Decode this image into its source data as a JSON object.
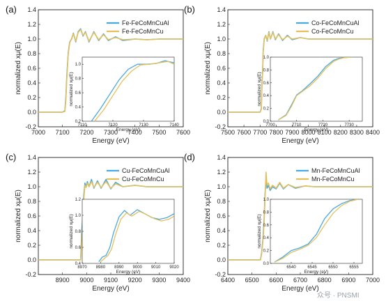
{
  "colors": {
    "series_a": "#4aa8e0",
    "series_b": "#e3c05a",
    "axis": "#222222"
  },
  "watermark": "众号 · PNSMI",
  "chart_data": [
    {
      "type": "line",
      "panel_label": "(a)",
      "xlabel": "Energy (eV)",
      "ylabel": "normalized xμ(E)",
      "xlim": [
        7000,
        7600
      ],
      "ylim": [
        -0.2,
        1.4
      ],
      "xticks": [
        7000,
        7100,
        7200,
        7300,
        7400,
        7500,
        7600
      ],
      "yticks": [
        -0.2,
        0.0,
        0.2,
        0.4,
        0.6,
        0.8,
        1.0,
        1.2,
        1.4
      ],
      "legend": [
        "Fe-FeCoMnCuAl",
        "Fe-FeCoMnCu"
      ],
      "series": [
        {
          "name": "Fe-FeCoMnCuAl",
          "x": [
            7000,
            7100,
            7110,
            7114,
            7118,
            7124,
            7130,
            7138,
            7145,
            7155,
            7165,
            7175,
            7185,
            7195,
            7210,
            7230,
            7250,
            7270,
            7290,
            7320,
            7350,
            7400,
            7450,
            7500,
            7600
          ],
          "y": [
            0,
            0,
            0.02,
            0.2,
            0.5,
            0.82,
            0.96,
            1.0,
            1.08,
            0.96,
            1.1,
            1.14,
            1.04,
            1.1,
            0.96,
            1.1,
            0.98,
            1.07,
            0.98,
            1.03,
            0.98,
            1.0,
            0.99,
            1.0,
            1.0
          ]
        },
        {
          "name": "Fe-FeCoMnCu",
          "x": [
            7000,
            7100,
            7110,
            7114,
            7118,
            7124,
            7130,
            7138,
            7145,
            7155,
            7165,
            7175,
            7185,
            7195,
            7210,
            7230,
            7250,
            7270,
            7290,
            7320,
            7350,
            7400,
            7450,
            7500,
            7600
          ],
          "y": [
            0,
            0,
            0.01,
            0.16,
            0.46,
            0.8,
            0.95,
            1.01,
            1.07,
            0.97,
            1.09,
            1.13,
            1.05,
            1.09,
            0.97,
            1.09,
            0.99,
            1.06,
            0.99,
            1.02,
            0.99,
            1.0,
            0.99,
            1.0,
            1.0
          ]
        }
      ],
      "inset": {
        "xlabel": "Energy (eV)",
        "ylabel": "normalized xμ(E)",
        "xlim": [
          7110,
          7140
        ],
        "ylim": [
          0.2,
          1.1
        ],
        "xticks": [
          7110,
          7120,
          7130,
          7140
        ],
        "yticks": [
          0.2,
          0.4,
          0.6,
          0.8,
          1.0
        ],
        "series": [
          {
            "name": "Fe-FeCoMnCuAl",
            "x": [
              7113,
              7116,
              7119,
              7122,
              7125,
              7128,
              7131,
              7134,
              7137,
              7140
            ],
            "y": [
              0.2,
              0.38,
              0.58,
              0.78,
              0.93,
              1.0,
              1.0,
              1.01,
              1.05,
              1.02
            ]
          },
          {
            "name": "Fe-FeCoMnCu",
            "x": [
              7114,
              7117,
              7120,
              7123,
              7126,
              7129,
              7132,
              7135,
              7138,
              7140
            ],
            "y": [
              0.2,
              0.36,
              0.56,
              0.76,
              0.9,
              0.99,
              1.0,
              1.02,
              1.04,
              1.0
            ]
          }
        ]
      }
    },
    {
      "type": "line",
      "panel_label": "(b)",
      "xlabel": "Energy (eV)",
      "ylabel": "normalized xμ(E)",
      "xlim": [
        7500,
        8400
      ],
      "ylim": [
        -0.2,
        1.4
      ],
      "xticks": [
        7500,
        7600,
        7700,
        7800,
        7900,
        8000,
        8100,
        8200,
        8300,
        8400
      ],
      "yticks": [
        -0.2,
        0.0,
        0.2,
        0.4,
        0.6,
        0.8,
        1.0,
        1.2,
        1.4
      ],
      "legend": [
        "Co-FeCoMnCuAl",
        "Co-FeCoMnCu"
      ],
      "series": [
        {
          "name": "Co-FeCoMnCuAl",
          "x": [
            7500,
            7700,
            7708,
            7712,
            7716,
            7720,
            7726,
            7735,
            7745,
            7755,
            7765,
            7780,
            7795,
            7815,
            7840,
            7870,
            7900,
            7950,
            8000,
            8100,
            8200,
            8400
          ],
          "y": [
            0,
            0,
            0.05,
            0.4,
            0.55,
            0.85,
            1.0,
            1.05,
            0.97,
            1.1,
            1.0,
            1.1,
            0.99,
            1.07,
            0.98,
            1.05,
            0.99,
            1.02,
            1.0,
            1.0,
            1.0,
            1.0
          ]
        },
        {
          "name": "Co-FeCoMnCu",
          "x": [
            7500,
            7700,
            7708,
            7712,
            7716,
            7720,
            7726,
            7735,
            7745,
            7755,
            7765,
            7780,
            7795,
            7815,
            7840,
            7870,
            7900,
            7950,
            8000,
            8100,
            8200,
            8400
          ],
          "y": [
            0,
            0,
            0.04,
            0.38,
            0.53,
            0.83,
            0.99,
            1.05,
            0.98,
            1.09,
            1.0,
            1.09,
            1.0,
            1.06,
            0.99,
            1.04,
            1.0,
            1.02,
            1.0,
            1.0,
            1.0,
            1.0
          ]
        }
      ],
      "inset": {
        "xlabel": "Energy (eV)",
        "ylabel": "normalized xμ(E)",
        "xlim": [
          7700,
          7735
        ],
        "ylim": [
          0.0,
          1.0
        ],
        "xticks": [
          7700,
          7710,
          7720,
          7730
        ],
        "yticks": [
          0.0,
          0.2,
          0.4,
          0.6,
          0.8,
          1.0
        ],
        "series": [
          {
            "name": "Co-FeCoMnCuAl",
            "x": [
              7703,
              7706,
              7708,
              7710,
              7712,
              7715,
              7718,
              7721,
              7724,
              7726,
              7728,
              7731
            ],
            "y": [
              0.02,
              0.1,
              0.25,
              0.41,
              0.47,
              0.58,
              0.7,
              0.85,
              0.95,
              0.98,
              0.99,
              1.0
            ]
          },
          {
            "name": "Co-FeCoMnCu",
            "x": [
              7703,
              7706,
              7708,
              7710,
              7712,
              7715,
              7718,
              7721,
              7724,
              7726,
              7728,
              7731
            ],
            "y": [
              0.02,
              0.09,
              0.23,
              0.4,
              0.46,
              0.55,
              0.67,
              0.82,
              0.93,
              0.97,
              0.99,
              1.0
            ]
          }
        ]
      }
    },
    {
      "type": "line",
      "panel_label": "(c)",
      "xlabel": "Energy (eV)",
      "ylabel": "normalized xμ(E)",
      "xlim": [
        8800,
        9400
      ],
      "ylim": [
        -0.2,
        1.4
      ],
      "xticks": [
        8900,
        9000,
        9100,
        9200,
        9300,
        9400
      ],
      "yticks": [
        -0.2,
        0.0,
        0.2,
        0.4,
        0.6,
        0.8,
        1.0,
        1.2,
        1.4
      ],
      "legend": [
        "Cu-FeCoMnCuAl",
        "Cu-FeCoMnCu"
      ],
      "series": [
        {
          "name": "Cu-FeCoMnCuAl",
          "x": [
            8800,
            8975,
            8980,
            8984,
            8988,
            8993,
            8998,
            9003,
            9010,
            9020,
            9030,
            9045,
            9060,
            9080,
            9100,
            9120,
            9150,
            9200,
            9250,
            9300,
            9400
          ],
          "y": [
            0,
            0,
            0.4,
            0.6,
            0.88,
            1.05,
            1.0,
            1.07,
            1.0,
            1.1,
            0.98,
            1.08,
            0.98,
            1.1,
            0.97,
            1.06,
            1.0,
            1.02,
            1.0,
            1.0,
            1.0
          ]
        },
        {
          "name": "Cu-FeCoMnCu",
          "x": [
            8800,
            8975,
            8980,
            8984,
            8988,
            8993,
            8998,
            9003,
            9010,
            9020,
            9030,
            9045,
            9060,
            9080,
            9100,
            9120,
            9150,
            9200,
            9250,
            9300,
            9400
          ],
          "y": [
            0,
            0,
            0.3,
            0.5,
            0.82,
            1.02,
            0.99,
            1.05,
            1.0,
            1.07,
            0.99,
            1.06,
            0.99,
            1.07,
            0.98,
            1.04,
            1.0,
            1.02,
            1.0,
            1.0,
            1.0
          ]
        }
      ],
      "inset": {
        "xlabel": "Energy (eV)",
        "ylabel": "normalized xμ(E)",
        "xlim": [
          8970,
          9020
        ],
        "ylim": [
          0.4,
          1.2
        ],
        "xticks": [
          8970,
          8980,
          8990,
          9000,
          9010,
          9020
        ],
        "yticks": [
          0.4,
          0.6,
          0.8,
          1.0,
          1.2
        ],
        "series": [
          {
            "name": "Cu-FeCoMnCuAl",
            "x": [
              8979,
              8981,
              8983,
              8985,
              8987,
              8990,
              8993,
              8996,
              9000,
              9004,
              9008,
              9012,
              9016,
              9020
            ],
            "y": [
              0.42,
              0.48,
              0.5,
              0.6,
              0.78,
              0.98,
              1.06,
              1.0,
              1.07,
              1.02,
              0.97,
              0.95,
              0.97,
              1.02
            ]
          },
          {
            "name": "Cu-FeCoMnCu",
            "x": [
              8980,
              8982,
              8984,
              8986,
              8988,
              8991,
              8994,
              8997,
              9001,
              9005,
              9009,
              9013,
              9017,
              9020
            ],
            "y": [
              0.42,
              0.46,
              0.5,
              0.58,
              0.75,
              0.95,
              1.03,
              0.99,
              1.05,
              1.01,
              0.96,
              0.93,
              0.95,
              0.99
            ]
          }
        ]
      }
    },
    {
      "type": "line",
      "panel_label": "(d)",
      "xlabel": "Energy (eV)",
      "ylabel": "normalized xμ(E)",
      "xlim": [
        6400,
        7000
      ],
      "ylim": [
        -0.2,
        1.4
      ],
      "xticks": [
        6400,
        6500,
        6600,
        6700,
        6800,
        6900,
        7000
      ],
      "yticks": [
        -0.2,
        0.0,
        0.2,
        0.4,
        0.6,
        0.8,
        1.0,
        1.2,
        1.4
      ],
      "legend": [
        "Mn-FeCoMnCuAl",
        "Mn-FeCoMnCu"
      ],
      "series": [
        {
          "name": "Mn-FeCoMnCuAl",
          "x": [
            6400,
            6535,
            6540,
            6545,
            6550,
            6554,
            6558,
            6562,
            6568,
            6575,
            6585,
            6600,
            6615,
            6630,
            6650,
            6680,
            6720,
            6760,
            6800,
            6900,
            7000
          ],
          "y": [
            0,
            0,
            0.1,
            0.28,
            0.55,
            0.9,
            1.12,
            0.98,
            1.02,
            0.95,
            1.0,
            0.97,
            1.05,
            0.97,
            1.03,
            0.98,
            1.01,
            1.0,
            1.0,
            1.0,
            1.0
          ]
        },
        {
          "name": "Mn-FeCoMnCu",
          "x": [
            6400,
            6535,
            6540,
            6545,
            6550,
            6554,
            6558,
            6562,
            6568,
            6575,
            6585,
            6600,
            6615,
            6630,
            6650,
            6680,
            6720,
            6760,
            6800,
            6900,
            7000
          ],
          "y": [
            0,
            0,
            0.08,
            0.25,
            0.5,
            0.85,
            1.2,
            1.02,
            1.05,
            0.97,
            1.02,
            0.98,
            1.06,
            0.98,
            1.03,
            0.99,
            1.01,
            1.0,
            1.0,
            1.0,
            1.0
          ]
        }
      ],
      "inset": {
        "xlabel": "Energy (eV)",
        "ylabel": "normalized xμ(E)",
        "xlim": [
          6535,
          6557
        ],
        "ylim": [
          0.0,
          1.0
        ],
        "xticks": [
          6540,
          6545,
          6550,
          6555
        ],
        "yticks": [
          0.0,
          0.2,
          0.4,
          0.6,
          0.8,
          1.0
        ],
        "series": [
          {
            "name": "Mn-FeCoMnCuAl",
            "x": [
              6536,
              6538,
              6540,
              6542,
              6544,
              6546,
              6548,
              6550,
              6552,
              6554,
              6556
            ],
            "y": [
              0.02,
              0.1,
              0.2,
              0.24,
              0.3,
              0.45,
              0.7,
              0.85,
              0.93,
              0.98,
              1.0
            ]
          },
          {
            "name": "Mn-FeCoMnCu",
            "x": [
              6536,
              6538,
              6540,
              6542,
              6544,
              6546,
              6548,
              6550,
              6552,
              6554,
              6556
            ],
            "y": [
              0.02,
              0.08,
              0.17,
              0.22,
              0.28,
              0.4,
              0.6,
              0.78,
              0.9,
              0.97,
              1.0
            ]
          }
        ]
      }
    }
  ]
}
